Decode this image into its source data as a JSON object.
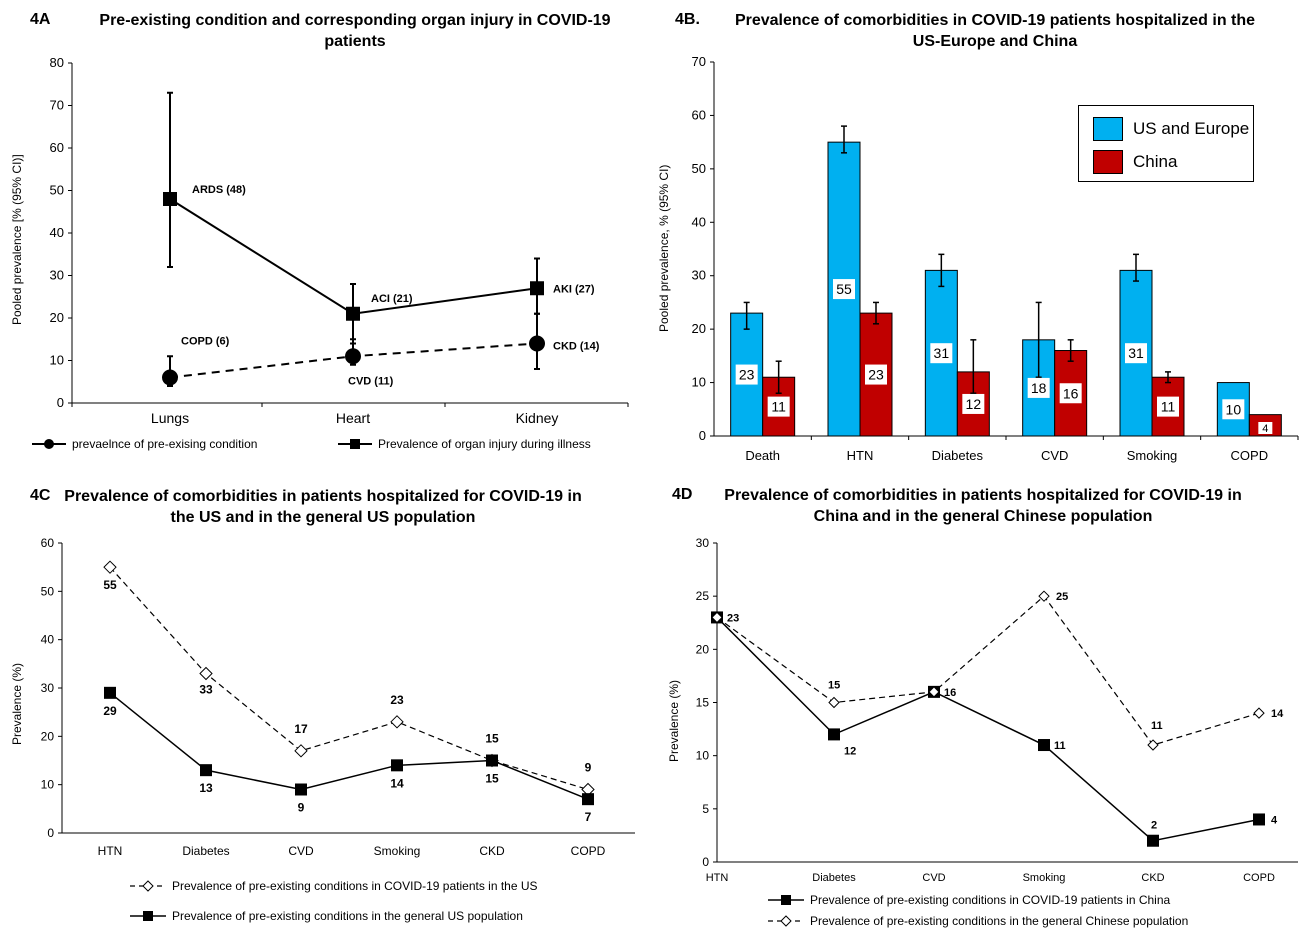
{
  "colors": {
    "us": "#00b0f0",
    "china": "#c00000",
    "line": "#000000"
  },
  "panelA": {
    "tag": "4A",
    "title": "Pre-existing condition and corresponding organ injury in COVID-19 patients",
    "ylabel": "Pooled prevalence [% (95% CI)]",
    "legend": [
      "prevaelnce of pre-exising condition",
      "Prevalence of organ injury during illness"
    ],
    "chart_data": {
      "type": "line",
      "categories": [
        "Lungs",
        "Heart",
        "Kidney"
      ],
      "ylim": [
        0,
        80
      ],
      "yticks": [
        0,
        10,
        20,
        30,
        40,
        50,
        60,
        70,
        80
      ],
      "series": [
        {
          "name": "prevaelnce of pre-exising condition",
          "values": [
            6,
            11,
            14
          ],
          "err_low": [
            4,
            9,
            8
          ],
          "err_high": [
            11,
            15,
            21
          ],
          "labels": [
            "COPD (6)",
            "CVD (11)",
            "CKD (14)"
          ],
          "marker": "circle",
          "dash": true
        },
        {
          "name": "Prevalence of organ injury during illness",
          "values": [
            48,
            21,
            27
          ],
          "err_low": [
            32,
            14,
            21
          ],
          "err_high": [
            73,
            28,
            34
          ],
          "labels": [
            "ARDS (48)",
            "ACI (21)",
            "AKI (27)"
          ],
          "marker": "square",
          "dash": false
        }
      ]
    }
  },
  "panelB": {
    "tag": "4B.",
    "title": "Prevalence of comorbidities in COVID-19 patients hospitalized in the US-Europe and China",
    "ylabel": "Pooled prevalence, % (95% CI)",
    "legend": [
      "US and Europe",
      "China"
    ],
    "chart_data": {
      "type": "bar",
      "categories": [
        "Death",
        "HTN",
        "Diabetes",
        "CVD",
        "Smoking",
        "COPD"
      ],
      "ylim": [
        0,
        70
      ],
      "yticks": [
        0,
        10,
        20,
        30,
        40,
        50,
        60,
        70
      ],
      "series": [
        {
          "name": "US and Europe",
          "values": [
            23,
            55,
            31,
            18,
            31,
            10
          ],
          "err_low": [
            20,
            53,
            28,
            11,
            29,
            null
          ],
          "err_high": [
            25,
            58,
            34,
            25,
            34,
            null
          ]
        },
        {
          "name": "China",
          "values": [
            11,
            23,
            12,
            16,
            11,
            4
          ],
          "err_low": [
            8,
            21,
            8,
            14,
            10,
            null
          ],
          "err_high": [
            14,
            25,
            18,
            18,
            12,
            null
          ]
        }
      ]
    }
  },
  "panelC": {
    "tag": "4C",
    "title": "Prevalence of comorbidities in patients hospitalized for COVID-19 in the US and in the general US population",
    "ylabel": "Prevalence (%)",
    "legend": [
      "Prevalence of pre-existing conditions in COVID-19 patients in the US",
      "Prevalence of pre-existing conditions in the general US population"
    ],
    "chart_data": {
      "type": "line",
      "categories": [
        "HTN",
        "Diabetes",
        "CVD",
        "Smoking",
        "CKD",
        "COPD"
      ],
      "ylim": [
        0,
        60
      ],
      "yticks": [
        0,
        10,
        20,
        30,
        40,
        50,
        60
      ],
      "series": [
        {
          "name": "Prevalence of pre-existing conditions in COVID-19 patients in the US",
          "values": [
            55,
            33,
            17,
            23,
            15,
            9
          ],
          "marker": "diamond",
          "dash": true
        },
        {
          "name": "Prevalence of pre-existing conditions in the general US population",
          "values": [
            29,
            13,
            9,
            14,
            15,
            7
          ],
          "marker": "square",
          "dash": false
        }
      ]
    }
  },
  "panelD": {
    "tag": "4D",
    "title": "Prevalence of comorbidities in patients hospitalized for COVID-19 in China and in the general Chinese population",
    "ylabel": "Prevalence (%)",
    "legend": [
      "Prevalence of pre-existing conditions in COVID-19 patients in China",
      "Prevalence of pre-existing conditions in the general Chinese population"
    ],
    "chart_data": {
      "type": "line",
      "categories": [
        "HTN",
        "Diabetes",
        "CVD",
        "Smoking",
        "CKD",
        "COPD"
      ],
      "ylim": [
        0,
        30
      ],
      "yticks": [
        0,
        5,
        10,
        15,
        20,
        25,
        30
      ],
      "series": [
        {
          "name": "Prevalence of pre-existing conditions in COVID-19 patients in China",
          "values": [
            23,
            12,
            16,
            11,
            2,
            4
          ],
          "marker": "square",
          "dash": false
        },
        {
          "name": "Prevalence of pre-existing conditions in the general Chinese population",
          "values": [
            23,
            15,
            16,
            25,
            11,
            14
          ],
          "marker": "diamond",
          "dash": true
        }
      ]
    }
  }
}
